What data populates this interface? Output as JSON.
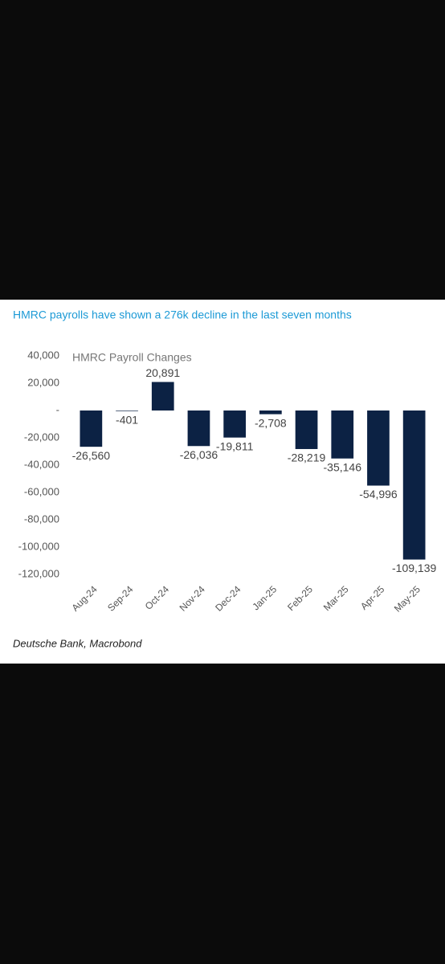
{
  "chart_data": {
    "type": "bar",
    "caption": "HMRC payrolls have shown a 276k decline in the last seven months",
    "title": "HMRC Payroll Changes",
    "source": "Deutsche Bank, Macrobond",
    "categories": [
      "Aug-24",
      "Sep-24",
      "Oct-24",
      "Nov-24",
      "Dec-24",
      "Jan-25",
      "Feb-25",
      "Mar-25",
      "Apr-25",
      "May-25"
    ],
    "values": [
      -26560,
      -401,
      20891,
      -26036,
      -19811,
      -2708,
      -28219,
      -35146,
      -54996,
      -109139
    ],
    "value_labels": [
      "-26,560",
      "-401",
      "20,891",
      "-26,036",
      "-19,811",
      "-2,708",
      "-28,219",
      "-35,146",
      "-54,996",
      "-109,139"
    ],
    "color": "#0c2244",
    "ylim": [
      -120000,
      40000
    ],
    "yticks": [
      {
        "value": 40000,
        "label": "40,000"
      },
      {
        "value": 20000,
        "label": "20,000"
      },
      {
        "value": 0,
        "label": "-"
      },
      {
        "value": -20000,
        "label": "-20,000"
      },
      {
        "value": -40000,
        "label": "-40,000"
      },
      {
        "value": -60000,
        "label": "-60,000"
      },
      {
        "value": -80000,
        "label": "-80,000"
      },
      {
        "value": -100000,
        "label": "-100,000"
      },
      {
        "value": -120000,
        "label": "-120,000"
      }
    ],
    "grid": false
  }
}
